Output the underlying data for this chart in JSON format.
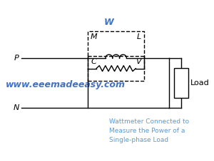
{
  "bg_color": "#ffffff",
  "line_color": "#000000",
  "text_color_blue": "#4472c4",
  "text_color_label": "#5b9bd5",
  "website": "www.eeemadeeasy.com",
  "caption_line1": "Wattmeter Connected to",
  "caption_line2": "Measure the Power of a",
  "caption_line3": "Single-phase Load",
  "label_W": "W",
  "label_M": "M",
  "label_L": "L",
  "label_C": "C",
  "label_V": "V",
  "label_P": "P",
  "label_N": "N",
  "label_Load": "Load"
}
